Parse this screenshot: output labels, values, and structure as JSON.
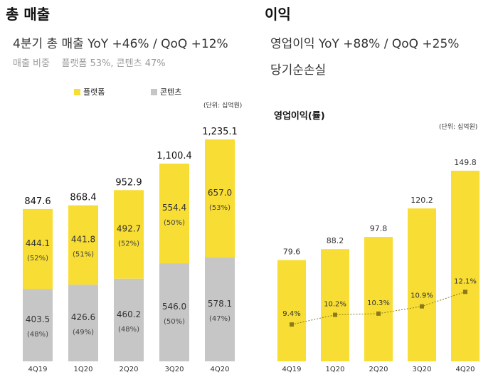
{
  "left": {
    "title": "총 매출",
    "subtitle": "4분기 총 매출  YoY +46% / QoQ +12%",
    "note_label": "매출 비중",
    "note_value": "플랫폼 53%, 콘텐츠 47%",
    "unit": "(단위: 십억원)"
  },
  "right": {
    "title": "이익",
    "subtitle1": "영업이익 YoY +88% / QoQ +25%",
    "subtitle2": "당기순손실",
    "chart_title": "영업이익(률)",
    "unit": "(단위: 십억원)"
  },
  "colors": {
    "platform": "#f8dd34",
    "content": "#c6c6c6",
    "op": "#f8dd34",
    "margin_marker": "#8b7a1a"
  },
  "chart_data": [
    {
      "type": "bar",
      "stacked": true,
      "categories": [
        "4Q19",
        "1Q20",
        "2Q20",
        "3Q20",
        "4Q20"
      ],
      "series": [
        {
          "name": "플랫폼",
          "values": [
            444.1,
            441.8,
            492.7,
            554.4,
            657.0
          ],
          "shares": [
            "(52%)",
            "(51%)",
            "(52%)",
            "(50%)",
            "(53%)"
          ]
        },
        {
          "name": "콘텐츠",
          "values": [
            403.5,
            426.6,
            460.2,
            546.0,
            578.1
          ],
          "shares": [
            "(48%)",
            "(49%)",
            "(48%)",
            "(50%)",
            "(47%)"
          ]
        }
      ],
      "totals": [
        "847.6",
        "868.4",
        "952.9",
        "1,100.4",
        "1,235.1"
      ],
      "ylim": [
        0,
        1300
      ],
      "legend": "top"
    },
    {
      "type": "bar",
      "categories": [
        "4Q19",
        "1Q20",
        "2Q20",
        "3Q20",
        "4Q20"
      ],
      "series": [
        {
          "values": [
            79.6,
            88.2,
            97.8,
            120.2,
            149.8
          ]
        }
      ],
      "line": {
        "values": [
          9.4,
          10.2,
          10.3,
          10.9,
          12.1
        ],
        "labels": [
          "9.4%",
          "10.2%",
          "10.3%",
          "10.9%",
          "12.1%"
        ]
      },
      "ylim": [
        0,
        160
      ]
    }
  ]
}
